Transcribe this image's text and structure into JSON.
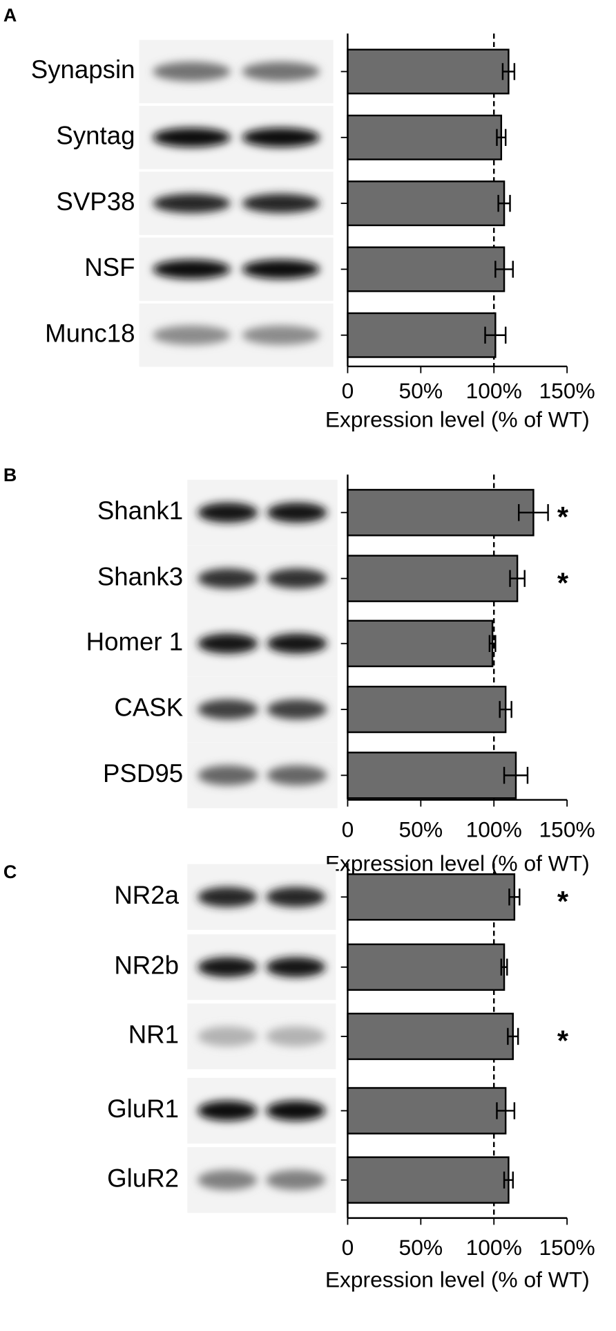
{
  "chart_data": [
    {
      "type": "bar",
      "orientation": "horizontal",
      "panel": "A",
      "categories": [
        "Synapsin",
        "Syntag",
        "SVP38",
        "NSF",
        "Munc18"
      ],
      "values": [
        110,
        105,
        107,
        107,
        101
      ],
      "errors": [
        4,
        3,
        4,
        6,
        7
      ],
      "annotations": [
        null,
        null,
        null,
        null,
        null
      ],
      "color": "#6d6d6d",
      "reference_line": 100,
      "xlim": [
        0,
        150
      ],
      "xticks": [
        0,
        {
          "value": 50,
          "label": "50%"
        },
        {
          "value": 100,
          "label": "100%"
        },
        {
          "value": 150,
          "label": "150%"
        }
      ],
      "xlabel": "Expression level (% of WT)"
    },
    {
      "type": "bar",
      "orientation": "horizontal",
      "panel": "B",
      "categories": [
        "Shank1",
        "Shank3",
        "Homer 1",
        "CASK",
        "PSD95"
      ],
      "values": [
        127,
        116,
        99,
        108,
        115
      ],
      "errors": [
        10,
        5,
        2,
        4,
        8
      ],
      "annotations": [
        "*",
        "*",
        null,
        null,
        null
      ],
      "color": "#6d6d6d",
      "reference_line": 100,
      "xlim": [
        0,
        150
      ],
      "xticks": [
        0,
        {
          "value": 50,
          "label": "50%"
        },
        {
          "value": 100,
          "label": "100%"
        },
        {
          "value": 150,
          "label": "150%"
        }
      ],
      "xlabel": "Expression level (% of WT)"
    },
    {
      "type": "bar",
      "orientation": "horizontal",
      "panel": "C",
      "categories": [
        "NR2a",
        "NR2b",
        "NR1",
        "GluR1",
        "GluR2"
      ],
      "values": [
        114,
        107,
        113,
        108,
        110
      ],
      "errors": [
        3.5,
        2,
        3.5,
        6,
        3
      ],
      "annotations": [
        "*",
        null,
        "*",
        null,
        null
      ],
      "color": "#6d6d6d",
      "reference_line": 100,
      "xlim": [
        0,
        150
      ],
      "xticks": [
        0,
        {
          "value": 50,
          "label": "50%"
        },
        {
          "value": 100,
          "label": "100%"
        },
        {
          "value": 150,
          "label": "150%"
        }
      ],
      "xlabel": "Expression level (% of WT)"
    }
  ]
}
